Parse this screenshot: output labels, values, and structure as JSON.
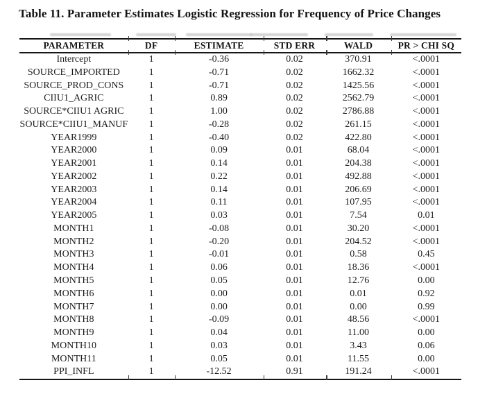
{
  "title": "Table 11. Parameter Estimates Logistic Regression for Frequency of Price Changes",
  "table": {
    "columns": [
      {
        "label": "PARAMETER",
        "key": "parameter"
      },
      {
        "label": "DF",
        "key": "df"
      },
      {
        "label": "ESTIMATE",
        "key": "estimate"
      },
      {
        "label": "STD ERR",
        "key": "std-err"
      },
      {
        "label": "WALD",
        "key": "wald"
      },
      {
        "label": "PR > CHI SQ",
        "key": "pr-chi-sq"
      }
    ],
    "rows": [
      [
        "Intercept",
        "1",
        "-0.36",
        "0.02",
        "370.91",
        "<.0001"
      ],
      [
        "SOURCE_IMPORTED",
        "1",
        "-0.71",
        "0.02",
        "1662.32",
        "<.0001"
      ],
      [
        "SOURCE_PROD_CONS",
        "1",
        "-0.71",
        "0.02",
        "1425.56",
        "<.0001"
      ],
      [
        "CIIU1_AGRIC",
        "1",
        "0.89",
        "0.02",
        "2562.79",
        "<.0001"
      ],
      [
        "SOURCE*CIIU1 AGRIC",
        "1",
        "1.00",
        "0.02",
        "2786.88",
        "<.0001"
      ],
      [
        "SOURCE*CIIU1_MANUF",
        "1",
        "-0.28",
        "0.02",
        "261.15",
        "<.0001"
      ],
      [
        "YEAR1999",
        "1",
        "-0.40",
        "0.02",
        "422.80",
        "<.0001"
      ],
      [
        "YEAR2000",
        "1",
        "0.09",
        "0.01",
        "68.04",
        "<.0001"
      ],
      [
        "YEAR2001",
        "1",
        "0.14",
        "0.01",
        "204.38",
        "<.0001"
      ],
      [
        "YEAR2002",
        "1",
        "0.22",
        "0.01",
        "492.88",
        "<.0001"
      ],
      [
        "YEAR2003",
        "1",
        "0.14",
        "0.01",
        "206.69",
        "<.0001"
      ],
      [
        "YEAR2004",
        "1",
        "0.11",
        "0.01",
        "107.95",
        "<.0001"
      ],
      [
        "YEAR2005",
        "1",
        "0.03",
        "0.01",
        "7.54",
        "0.01"
      ],
      [
        "MONTH1",
        "1",
        "-0.08",
        "0.01",
        "30.20",
        "<.0001"
      ],
      [
        "MONTH2",
        "1",
        "-0.20",
        "0.01",
        "204.52",
        "<.0001"
      ],
      [
        "MONTH3",
        "1",
        "-0.01",
        "0.01",
        "0.58",
        "0.45"
      ],
      [
        "MONTH4",
        "1",
        "0.06",
        "0.01",
        "18.36",
        "<.0001"
      ],
      [
        "MONTH5",
        "1",
        "0.05",
        "0.01",
        "12.76",
        "0.00"
      ],
      [
        "MONTH6",
        "1",
        "0.00",
        "0.01",
        "0.01",
        "0.92"
      ],
      [
        "MONTH7",
        "1",
        "0.00",
        "0.01",
        "0.00",
        "0.99"
      ],
      [
        "MONTH8",
        "1",
        "-0.09",
        "0.01",
        "48.56",
        "<.0001"
      ],
      [
        "MONTH9",
        "1",
        "0.04",
        "0.01",
        "11.00",
        "0.00"
      ],
      [
        "MONTH10",
        "1",
        "0.03",
        "0.01",
        "3.43",
        "0.06"
      ],
      [
        "MONTH11",
        "1",
        "0.05",
        "0.01",
        "11.55",
        "0.00"
      ],
      [
        "PPI_INFL",
        "1",
        "-12.52",
        "0.91",
        "191.24",
        "<.0001"
      ]
    ]
  },
  "colors": {
    "background": "#ffffff",
    "text": "#1c1c1c",
    "rule": "#161616",
    "ghost_artifact": "#c6c6c6"
  }
}
